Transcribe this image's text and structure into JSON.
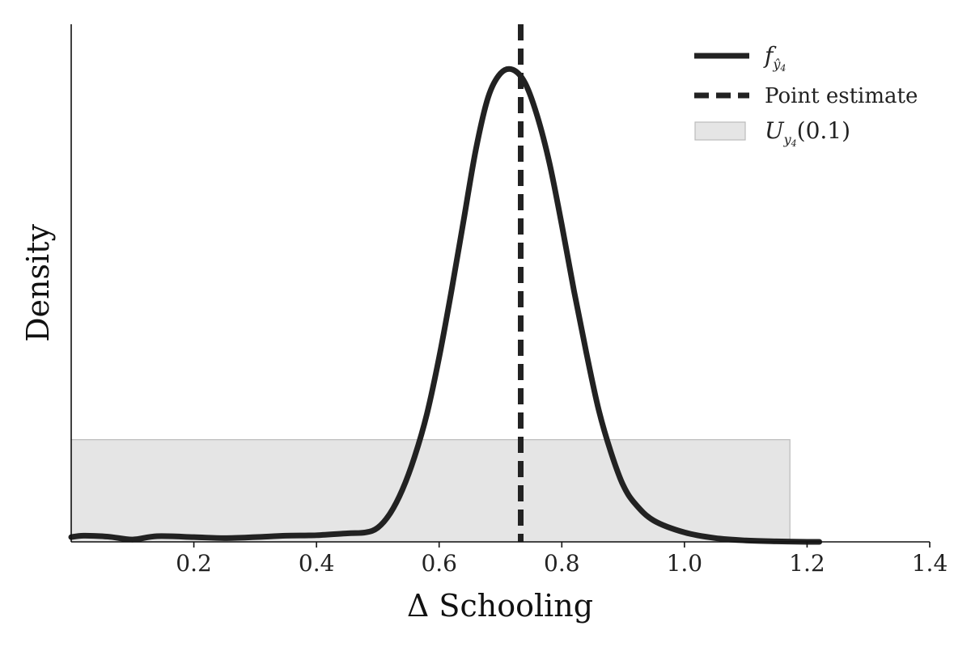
{
  "chart_data": {
    "type": "line",
    "xlabel": "Δ Schooling",
    "ylabel": "Density",
    "xlim": [
      0.0,
      1.4
    ],
    "ylim": [
      0.0,
      1.0
    ],
    "x_ticks": [
      0.2,
      0.4,
      0.6,
      0.8,
      1.0,
      1.2,
      1.4
    ],
    "x_tick_labels": [
      "0.2",
      "0.4",
      "0.6",
      "0.8",
      "1.0",
      "1.2",
      "1.4"
    ],
    "y_ticks_shown": false,
    "grid": false,
    "legend_position": "top-right",
    "colors": {
      "density": "#222222",
      "estimate": "#222222",
      "interval_fill": "#e5e5e5",
      "interval_edge": "#bbbbbb"
    },
    "series": [
      {
        "name": "f_ŷ4",
        "kind": "line",
        "x": [
          0.0,
          0.02,
          0.06,
          0.1,
          0.14,
          0.2,
          0.25,
          0.3,
          0.35,
          0.4,
          0.45,
          0.48,
          0.5,
          0.52,
          0.54,
          0.56,
          0.58,
          0.6,
          0.62,
          0.64,
          0.66,
          0.68,
          0.7,
          0.72,
          0.74,
          0.76,
          0.78,
          0.8,
          0.82,
          0.84,
          0.86,
          0.88,
          0.9,
          0.92,
          0.95,
          1.0,
          1.05,
          1.1,
          1.15,
          1.2,
          1.22
        ],
        "y": [
          0.01,
          0.013,
          0.011,
          0.005,
          0.012,
          0.01,
          0.008,
          0.01,
          0.013,
          0.014,
          0.018,
          0.02,
          0.03,
          0.06,
          0.11,
          0.18,
          0.27,
          0.39,
          0.53,
          0.68,
          0.83,
          0.94,
          0.99,
          0.998,
          0.97,
          0.9,
          0.8,
          0.67,
          0.53,
          0.4,
          0.28,
          0.19,
          0.12,
          0.08,
          0.045,
          0.02,
          0.008,
          0.003,
          0.001,
          0.0,
          0.0
        ]
      },
      {
        "name": "Point estimate",
        "kind": "vline",
        "x": 0.733
      },
      {
        "name": "U_y4(0.1)",
        "kind": "band",
        "x_start": 0.0,
        "x_end": 1.172,
        "height": 0.216
      }
    ]
  },
  "legend": {
    "density_label": "f",
    "density_sub": "ŷ",
    "density_subsub": "4",
    "estimate_label": "Point estimate",
    "interval_label": "U",
    "interval_sub": "y",
    "interval_subsub": "4",
    "interval_arg": "(0.1)"
  }
}
